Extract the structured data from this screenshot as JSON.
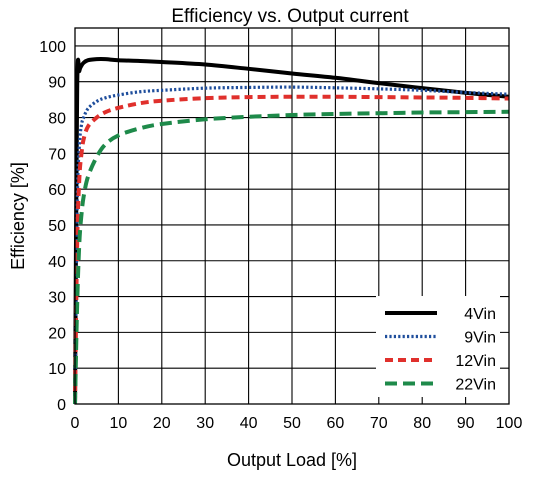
{
  "chart_data": {
    "type": "line",
    "title": "Efficiency vs. Output current",
    "xlabel": "Output Load [%]",
    "ylabel": "Efficiency [%]",
    "xlim": [
      0,
      100
    ],
    "ylim": [
      0,
      105
    ],
    "xticks": [
      0,
      10,
      20,
      30,
      40,
      50,
      60,
      70,
      80,
      90,
      100
    ],
    "yticks": [
      0,
      10,
      20,
      30,
      40,
      50,
      60,
      70,
      80,
      90,
      100
    ],
    "grid": true,
    "legend_position": "bottom-right",
    "series": [
      {
        "name": "4Vin",
        "color": "#000000",
        "style": "solid",
        "x": [
          0,
          0.5,
          1,
          1.5,
          2,
          3,
          5,
          7,
          10,
          15,
          20,
          30,
          40,
          50,
          60,
          70,
          80,
          90,
          100
        ],
        "y": [
          0,
          88,
          93,
          94.5,
          95.3,
          96,
          96.3,
          96.3,
          96,
          95.8,
          95.5,
          94.8,
          93.6,
          92.3,
          91.1,
          89.6,
          88.2,
          86.9,
          85.8
        ]
      },
      {
        "name": "9Vin",
        "color": "#1f4e9c",
        "style": "dotted",
        "x": [
          0,
          0.5,
          1,
          1.5,
          2,
          3,
          5,
          7,
          10,
          15,
          20,
          30,
          40,
          50,
          60,
          70,
          80,
          90,
          100
        ],
        "y": [
          0,
          55,
          72,
          78,
          80,
          82.5,
          84.5,
          85.5,
          86.3,
          87.2,
          87.6,
          88.2,
          88.4,
          88.5,
          88.3,
          88,
          87.6,
          87,
          86.5
        ]
      },
      {
        "name": "12Vin",
        "color": "#e0302c",
        "style": "dashed",
        "x": [
          0,
          0.5,
          1,
          1.5,
          2,
          3,
          5,
          7,
          10,
          15,
          20,
          30,
          40,
          50,
          60,
          70,
          80,
          90,
          100
        ],
        "y": [
          0,
          45,
          63,
          70,
          74,
          77.5,
          80,
          81.5,
          82.7,
          84,
          84.7,
          85.4,
          85.7,
          85.8,
          85.8,
          85.7,
          85.6,
          85.5,
          85.3
        ]
      },
      {
        "name": "22Vin",
        "color": "#1e8a4a",
        "style": "long-dashed",
        "x": [
          0,
          0.5,
          1,
          1.5,
          2,
          3,
          5,
          7,
          10,
          15,
          20,
          30,
          40,
          50,
          60,
          70,
          80,
          90,
          100
        ],
        "y": [
          0,
          28,
          45,
          53,
          58,
          63.5,
          69,
          72.5,
          75,
          77,
          78.2,
          79.5,
          80.2,
          80.7,
          81,
          81.2,
          81.4,
          81.5,
          81.6
        ]
      }
    ]
  }
}
